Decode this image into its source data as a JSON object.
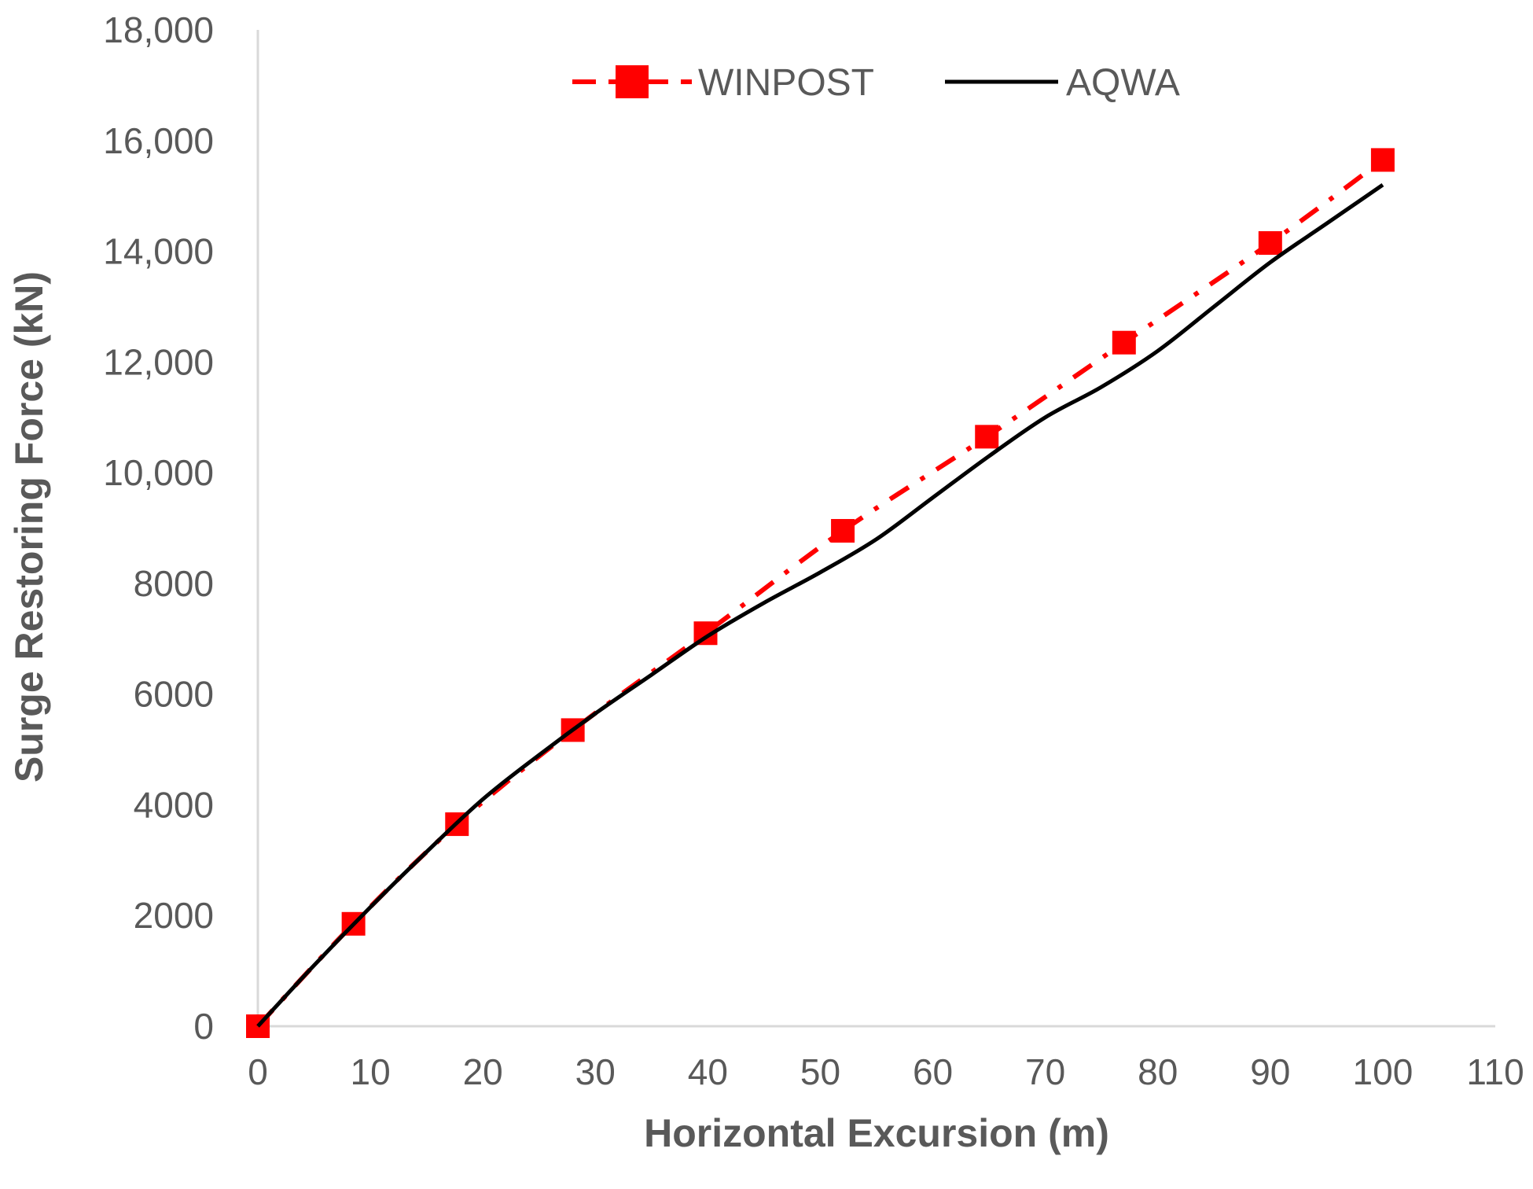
{
  "chart_data": {
    "type": "line",
    "xlabel": "Horizontal Excursion (m)",
    "ylabel": "Surge Restoring Force (kN)",
    "xlim": [
      0,
      110
    ],
    "ylim": [
      0,
      18000
    ],
    "x_ticks": [
      0,
      10,
      20,
      30,
      40,
      50,
      60,
      70,
      80,
      90,
      100,
      110
    ],
    "x_tick_labels": [
      "0",
      "10",
      "20",
      "30",
      "40",
      "50",
      "60",
      "70",
      "80",
      "90",
      "100",
      "110"
    ],
    "y_ticks": [
      0,
      2000,
      4000,
      6000,
      8000,
      10000,
      12000,
      14000,
      16000,
      18000
    ],
    "y_tick_labels": [
      "0",
      "2000",
      "4000",
      "6000",
      "8000",
      "10,000",
      "12,000",
      "14,000",
      "16,000",
      "18,000"
    ],
    "grid": false,
    "legend_position": "top-center",
    "series": [
      {
        "name": "WINPOST",
        "style": "dash-dot line with square markers",
        "color": "#ff0000",
        "x": [
          0,
          8.5,
          17.7,
          28,
          39.8,
          52,
          64.8,
          77,
          90,
          100
        ],
        "y": [
          0,
          1850,
          3650,
          5350,
          7100,
          8950,
          10650,
          12350,
          14150,
          15650
        ]
      },
      {
        "name": "AQWA",
        "style": "solid line",
        "color": "#000000",
        "x": [
          0,
          5,
          10,
          15,
          20,
          25,
          30,
          35,
          40,
          45,
          50,
          55,
          60,
          65,
          70,
          75,
          80,
          85,
          90,
          95,
          100
        ],
        "y": [
          0,
          1100,
          2150,
          3150,
          4100,
          4900,
          5650,
          6350,
          7050,
          7650,
          8200,
          8800,
          9550,
          10300,
          11000,
          11550,
          12200,
          13000,
          13800,
          14500,
          15200
        ]
      }
    ]
  }
}
